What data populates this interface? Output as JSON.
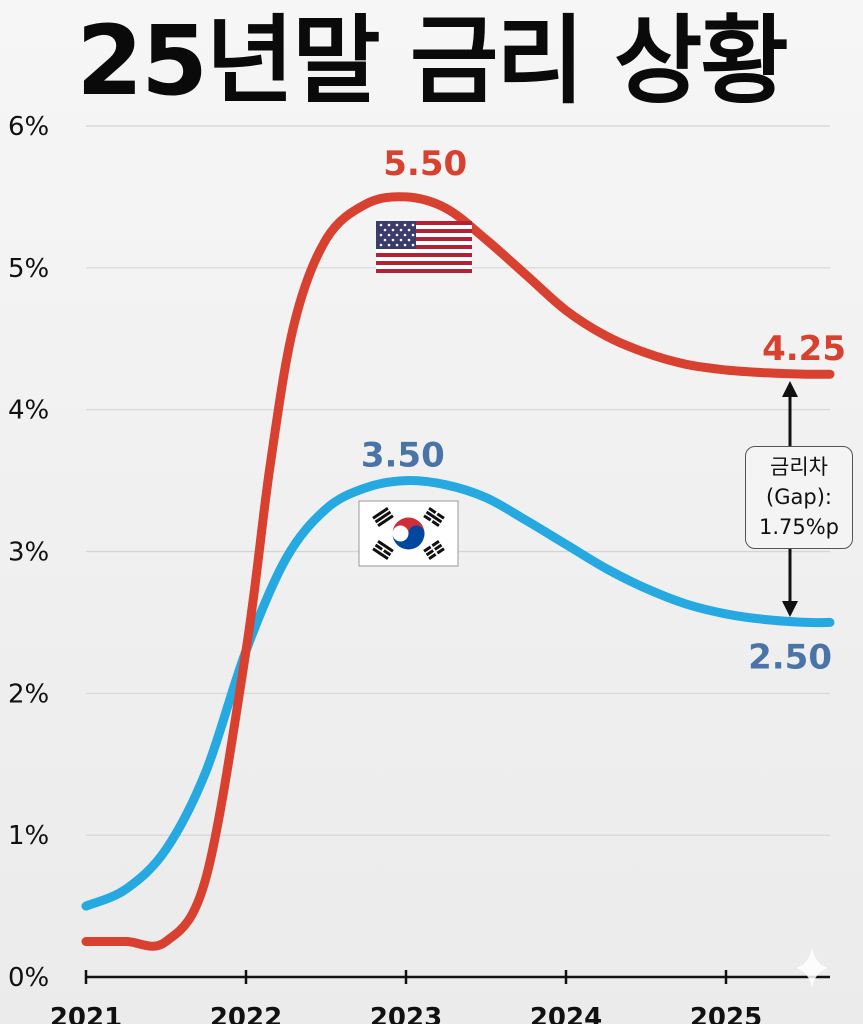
{
  "title": "25년말 금리 상황",
  "colors": {
    "us": "#d8412f",
    "kr": "#25a9e0",
    "us_label": "#d8412f",
    "kr_label": "#4a74a8",
    "grid": "#d4d4d4",
    "axis": "#111111"
  },
  "flags": {
    "us": "us-flag-icon",
    "kr": "kr-flag-icon"
  },
  "chart_data": {
    "type": "line",
    "title": "25년말 금리 상황",
    "xlabel": "",
    "ylabel": "",
    "xlim": [
      2021,
      2025.65
    ],
    "ylim": [
      0,
      6
    ],
    "yticks": [
      "0%",
      "1%",
      "2%",
      "3%",
      "4%",
      "5%",
      "6%"
    ],
    "xticks": [
      "2021",
      "2022",
      "2023",
      "2024",
      "2025"
    ],
    "grid": true,
    "series": [
      {
        "key": "us",
        "x": [
          2021,
          2021.25,
          2021.5,
          2021.75,
          2022,
          2022.15,
          2022.3,
          2022.5,
          2022.75,
          2023,
          2023.25,
          2023.5,
          2023.75,
          2024,
          2024.25,
          2024.5,
          2024.75,
          2025,
          2025.25,
          2025.5,
          2025.65
        ],
        "values": [
          0.25,
          0.25,
          0.25,
          0.7,
          2.3,
          3.6,
          4.6,
          5.2,
          5.45,
          5.5,
          5.42,
          5.2,
          4.95,
          4.7,
          4.52,
          4.4,
          4.32,
          4.28,
          4.26,
          4.25,
          4.25
        ]
      },
      {
        "key": "kr",
        "x": [
          2021,
          2021.25,
          2021.5,
          2021.75,
          2022,
          2022.25,
          2022.5,
          2022.75,
          2023,
          2023.25,
          2023.5,
          2023.75,
          2024,
          2024.25,
          2024.5,
          2024.75,
          2025,
          2025.25,
          2025.5,
          2025.65
        ],
        "values": [
          0.5,
          0.62,
          0.9,
          1.45,
          2.3,
          2.95,
          3.3,
          3.45,
          3.5,
          3.47,
          3.38,
          3.22,
          3.05,
          2.88,
          2.74,
          2.63,
          2.56,
          2.52,
          2.5,
          2.5
        ]
      }
    ],
    "annotations": {
      "us_peak": "5.50",
      "us_end": "4.25",
      "kr_peak": "3.50",
      "kr_end": "2.50",
      "gap": [
        "금리차",
        "(Gap):",
        "1.75%p"
      ]
    }
  }
}
